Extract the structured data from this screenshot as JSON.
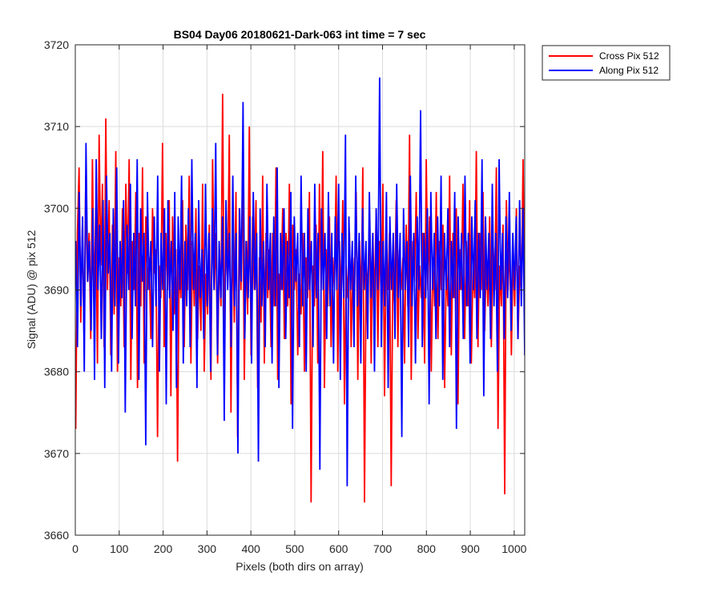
{
  "chart_data": {
    "type": "line",
    "title": "BS04 Day06 20180621-Dark-063 int time = 7 sec",
    "xlabel": "Pixels (both dirs on array)",
    "ylabel": "Signal (ADU) @ pix 512",
    "xlim": [
      0,
      1024
    ],
    "ylim": [
      3660,
      3720
    ],
    "xticks": [
      0,
      100,
      200,
      300,
      400,
      500,
      600,
      700,
      800,
      900,
      1000
    ],
    "yticks": [
      3660,
      3670,
      3680,
      3690,
      3700,
      3710,
      3720
    ],
    "grid": true,
    "legend_position": "outside top-right",
    "series": [
      {
        "name": "Cross Pix 512",
        "color": "#ff0000",
        "x_start": 1,
        "x_end": 1024,
        "values": [
          3673,
          3697,
          3705,
          3686,
          3698,
          3684,
          3704,
          3691,
          3697,
          3684,
          3706,
          3688,
          3700,
          3681,
          3709,
          3693,
          3703,
          3683,
          3711,
          3690,
          3701,
          3682,
          3698,
          3687,
          3707,
          3680,
          3694,
          3688,
          3700,
          3683,
          3703,
          3692,
          3706,
          3679,
          3696,
          3690,
          3702,
          3678,
          3697,
          3688,
          3705,
          3681,
          3699,
          3690,
          3694,
          3684,
          3700,
          3692,
          3695,
          3672,
          3693,
          3689,
          3708,
          3683,
          3697,
          3690,
          3701,
          3677,
          3699,
          3687,
          3695,
          3669,
          3694,
          3689,
          3701,
          3683,
          3698,
          3690,
          3704,
          3681,
          3696,
          3688,
          3700,
          3684,
          3693,
          3685,
          3703,
          3680,
          3692,
          3687,
          3698,
          3679,
          3706,
          3690,
          3697,
          3681,
          3695,
          3688,
          3714,
          3684,
          3696,
          3691,
          3709,
          3675,
          3698,
          3686,
          3702,
          3672,
          3700,
          3690,
          3705,
          3679,
          3696,
          3687,
          3710,
          3682,
          3699,
          3690,
          3701,
          3678,
          3694,
          3686,
          3704,
          3681,
          3697,
          3689,
          3695,
          3683,
          3697,
          3688,
          3705,
          3679,
          3692,
          3690,
          3700,
          3684,
          3697,
          3688,
          3703,
          3676,
          3698,
          3690,
          3695,
          3682,
          3692,
          3687,
          3697,
          3680,
          3694,
          3689,
          3702,
          3664,
          3693,
          3688,
          3698,
          3681,
          3703,
          3690,
          3707,
          3678,
          3695,
          3688,
          3699,
          3683,
          3694,
          3690,
          3704,
          3680,
          3696,
          3688,
          3701,
          3676,
          3693,
          3689,
          3697,
          3683,
          3694,
          3690,
          3702,
          3679,
          3696,
          3688,
          3705,
          3664,
          3693,
          3690,
          3699,
          3681,
          3697,
          3688,
          3700,
          3683,
          3696,
          3689,
          3703,
          3677,
          3695,
          3690,
          3697,
          3666,
          3693,
          3688,
          3701,
          3683,
          3695,
          3690,
          3694,
          3681,
          3698,
          3688,
          3709,
          3679,
          3696,
          3691,
          3702,
          3684,
          3693,
          3689,
          3697,
          3681,
          3706,
          3690,
          3699,
          3680,
          3694,
          3688,
          3702,
          3684,
          3696,
          3690,
          3698,
          3678,
          3693,
          3688,
          3704,
          3682,
          3697,
          3689,
          3700,
          3676,
          3695,
          3690,
          3703,
          3684,
          3696,
          3688,
          3701,
          3681,
          3693,
          3689,
          3707,
          3683,
          3697,
          3690,
          3702,
          3685,
          3694,
          3688,
          3699,
          3683,
          3696,
          3690,
          3705,
          3673,
          3693,
          3688,
          3698,
          3665,
          3701,
          3690,
          3696,
          3682,
          3694,
          3688,
          3700,
          3684,
          3693,
          3689,
          3706,
          3687
        ]
      },
      {
        "name": "Along Pix 512",
        "color": "#0000ff",
        "x_start": 1,
        "x_end": 1024,
        "values": [
          3696,
          3683,
          3702,
          3688,
          3699,
          3680,
          3708,
          3691,
          3696,
          3685,
          3700,
          3679,
          3706,
          3690,
          3698,
          3684,
          3701,
          3678,
          3704,
          3692,
          3697,
          3680,
          3700,
          3688,
          3705,
          3681,
          3696,
          3689,
          3701,
          3675,
          3698,
          3690,
          3703,
          3684,
          3697,
          3688,
          3706,
          3679,
          3700,
          3691,
          3697,
          3671,
          3702,
          3690,
          3696,
          3683,
          3699,
          3688,
          3704,
          3680,
          3697,
          3690,
          3700,
          3676,
          3701,
          3689,
          3696,
          3685,
          3702,
          3678,
          3699,
          3690,
          3704,
          3681,
          3696,
          3688,
          3700,
          3683,
          3706,
          3690,
          3697,
          3678,
          3701,
          3689,
          3695,
          3684,
          3703,
          3688,
          3697,
          3680,
          3700,
          3690,
          3708,
          3682,
          3696,
          3689,
          3699,
          3674,
          3701,
          3690,
          3697,
          3683,
          3704,
          3688,
          3697,
          3670,
          3700,
          3691,
          3713,
          3684,
          3696,
          3689,
          3699,
          3681,
          3702,
          3690,
          3697,
          3669,
          3700,
          3688,
          3696,
          3683,
          3703,
          3690,
          3697,
          3681,
          3699,
          3688,
          3705,
          3678,
          3697,
          3690,
          3700,
          3684,
          3696,
          3689,
          3702,
          3673,
          3699,
          3691,
          3697,
          3683,
          3704,
          3688,
          3697,
          3680,
          3700,
          3690,
          3696,
          3683,
          3703,
          3689,
          3697,
          3668,
          3700,
          3690,
          3697,
          3684,
          3702,
          3688,
          3697,
          3681,
          3699,
          3690,
          3703,
          3679,
          3697,
          3689,
          3709,
          3666,
          3699,
          3690,
          3696,
          3683,
          3704,
          3688,
          3697,
          3681,
          3700,
          3690,
          3696,
          3684,
          3702,
          3689,
          3697,
          3680,
          3700,
          3690,
          3716,
          3683,
          3696,
          3688,
          3702,
          3678,
          3699,
          3690,
          3697,
          3684,
          3703,
          3689,
          3697,
          3672,
          3700,
          3690,
          3696,
          3683,
          3704,
          3688,
          3697,
          3681,
          3699,
          3690,
          3712,
          3683,
          3697,
          3689,
          3700,
          3676,
          3702,
          3690,
          3697,
          3684,
          3699,
          3688,
          3704,
          3679,
          3697,
          3690,
          3700,
          3683,
          3696,
          3689,
          3702,
          3673,
          3699,
          3690,
          3697,
          3684,
          3704,
          3688,
          3697,
          3681,
          3699,
          3690,
          3701,
          3684,
          3697,
          3689,
          3706,
          3677,
          3699,
          3690,
          3697,
          3684,
          3703,
          3688,
          3697,
          3680,
          3706,
          3690,
          3697,
          3684,
          3699,
          3689,
          3702,
          3685,
          3697,
          3690,
          3699,
          3684,
          3701,
          3688,
          3700,
          3682
        ]
      }
    ]
  }
}
